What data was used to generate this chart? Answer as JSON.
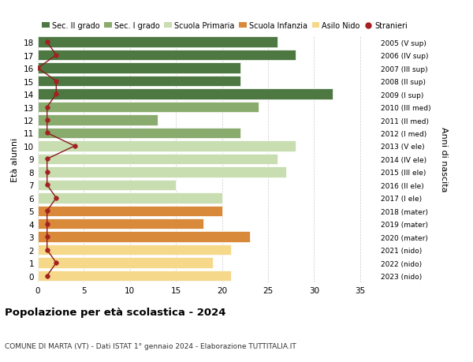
{
  "ages": [
    0,
    1,
    2,
    3,
    4,
    5,
    6,
    7,
    8,
    9,
    10,
    11,
    12,
    13,
    14,
    15,
    16,
    17,
    18
  ],
  "bar_values": [
    21,
    19,
    21,
    23,
    18,
    20,
    20,
    15,
    27,
    26,
    28,
    22,
    13,
    24,
    32,
    22,
    22,
    28,
    26
  ],
  "bar_colors": [
    "#f5d88a",
    "#f5d88a",
    "#f5d88a",
    "#d9893a",
    "#d9893a",
    "#d9893a",
    "#c8ddb0",
    "#c8ddb0",
    "#c8ddb0",
    "#c8ddb0",
    "#c8ddb0",
    "#8aab6e",
    "#8aab6e",
    "#8aab6e",
    "#4d7842",
    "#4d7842",
    "#4d7842",
    "#4d7842",
    "#4d7842"
  ],
  "stranieri_values": [
    1,
    2,
    1,
    1,
    1,
    1,
    2,
    1,
    1,
    1,
    4,
    1,
    1,
    1,
    2,
    2,
    0,
    2,
    1
  ],
  "right_labels": [
    "2023 (nido)",
    "2022 (nido)",
    "2021 (nido)",
    "2020 (mater)",
    "2019 (mater)",
    "2018 (mater)",
    "2017 (I ele)",
    "2016 (II ele)",
    "2015 (III ele)",
    "2014 (IV ele)",
    "2013 (V ele)",
    "2012 (I med)",
    "2011 (II med)",
    "2010 (III med)",
    "2009 (I sup)",
    "2008 (II sup)",
    "2007 (III sup)",
    "2006 (IV sup)",
    "2005 (V sup)"
  ],
  "legend_labels": [
    "Sec. II grado",
    "Sec. I grado",
    "Scuola Primaria",
    "Scuola Infanzia",
    "Asilo Nido",
    "Stranieri"
  ],
  "legend_colors": [
    "#4d7842",
    "#8aab6e",
    "#c8ddb0",
    "#d9893a",
    "#f5d88a",
    "#a52020"
  ],
  "ylabel_left": "Età alunni",
  "ylabel_right": "Anni di nascita",
  "title": "Popolazione per età scolastica - 2024",
  "subtitle": "COMUNE DI MARTA (VT) - Dati ISTAT 1° gennaio 2024 - Elaborazione TUTTITALIA.IT",
  "xlim": [
    0,
    37
  ],
  "xticks": [
    0,
    5,
    10,
    15,
    20,
    25,
    30,
    35
  ],
  "background_color": "#ffffff",
  "grid_color": "#cccccc"
}
